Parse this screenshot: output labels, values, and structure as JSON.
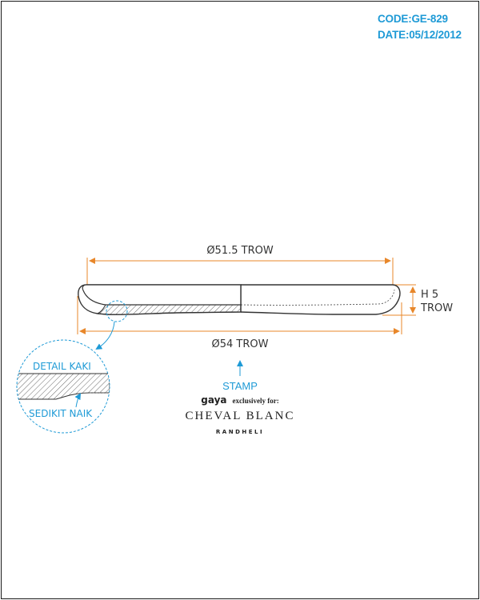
{
  "header": {
    "code": "CODE:GE-829",
    "date": "DATE:05/12/2012"
  },
  "dimensions": {
    "top_diameter": "Ø51.5 TROW",
    "bottom_diameter": "Ø54 TROW",
    "height_line1": "H 5",
    "height_line2": "TROW"
  },
  "detail": {
    "label_top": "DETAIL KAKI",
    "label_bottom": "SEDIKIT NAIK"
  },
  "stamp": {
    "label": "STAMP",
    "brand_line1_a": "gaya",
    "brand_line1_b": "exclusively for:",
    "brand_line2": "CHEVAL BLANC",
    "brand_line3": "RANDHELI"
  },
  "colors": {
    "accent": "#1e9ad6",
    "dimension": "#e8872a",
    "outline": "#333333"
  }
}
